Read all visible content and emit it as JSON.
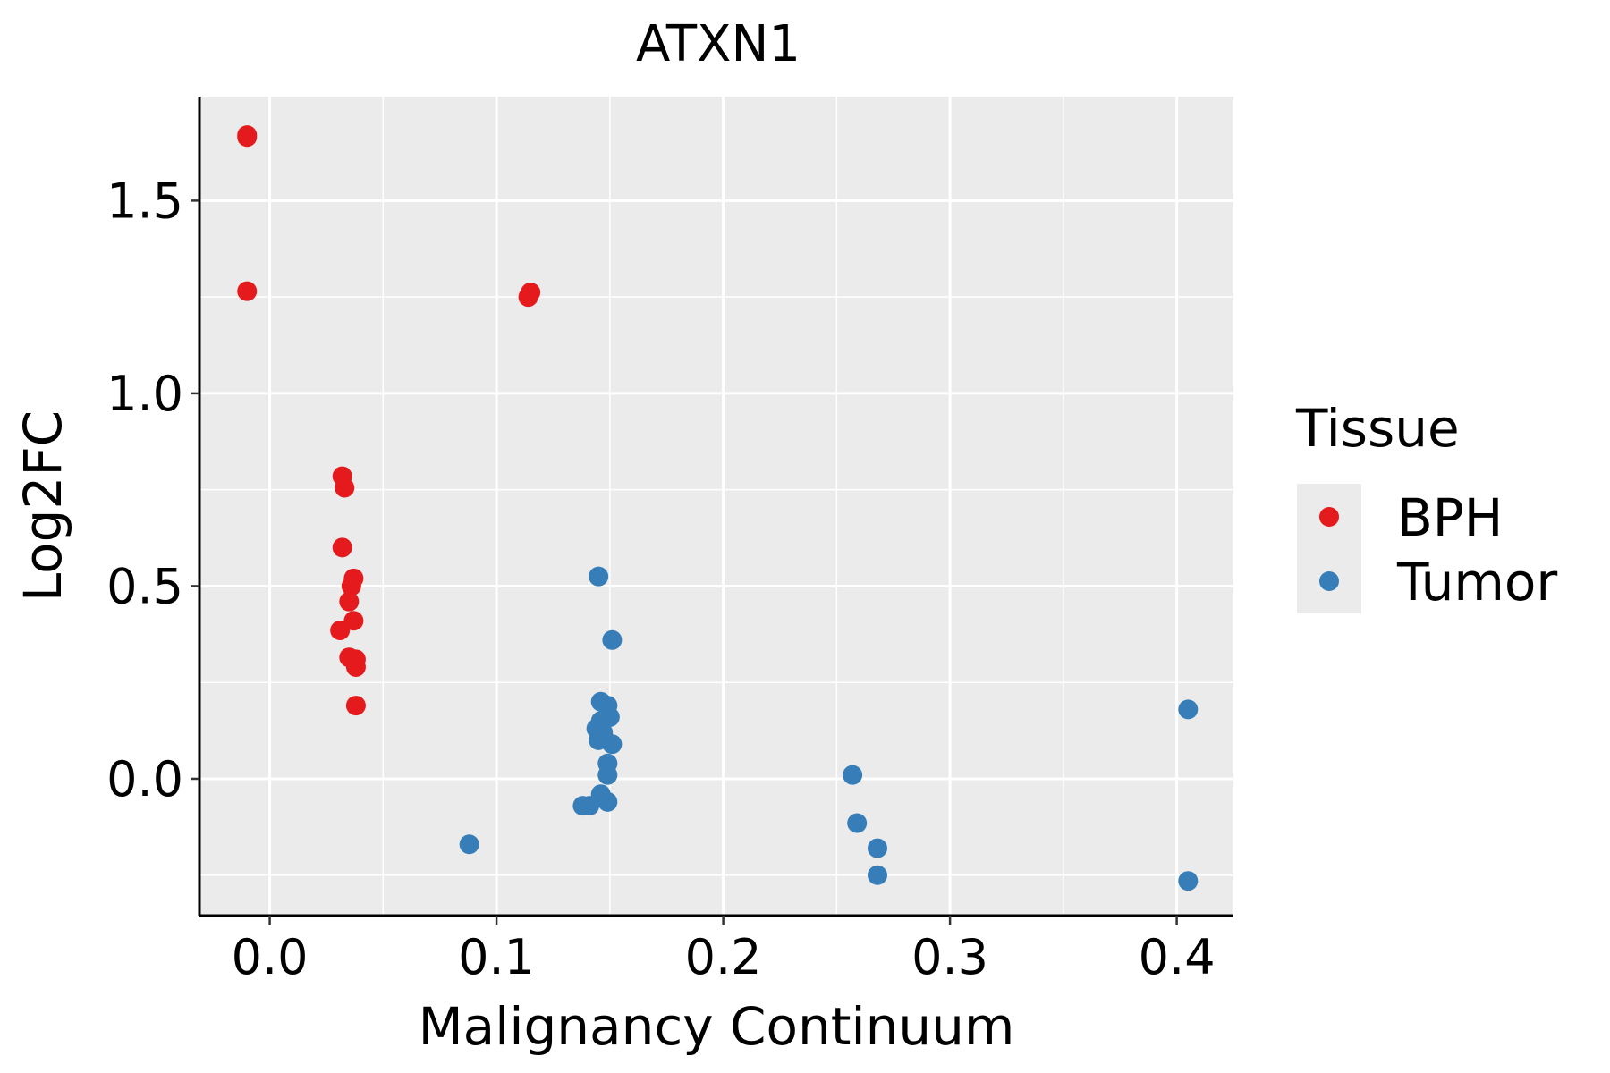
{
  "chart_data": {
    "type": "scatter",
    "title": "ATXN1",
    "xlabel": "Malignancy Continuum",
    "ylabel": "Log2FC",
    "xlim": [
      -0.031,
      0.425
    ],
    "ylim": [
      -0.355,
      1.77
    ],
    "x_ticks": [
      0.0,
      0.1,
      0.2,
      0.3,
      0.4
    ],
    "x_tick_labels": [
      "0.0",
      "0.1",
      "0.2",
      "0.3",
      "0.4"
    ],
    "y_ticks": [
      0.0,
      0.5,
      1.0,
      1.5
    ],
    "y_tick_labels": [
      "0.0",
      "0.5",
      "1.0",
      "1.5"
    ],
    "x_minor": [
      0.05,
      0.15,
      0.25,
      0.35
    ],
    "y_minor": [
      -0.25,
      0.25,
      0.75,
      1.25
    ],
    "grid": true,
    "legend": {
      "title": "Tissue",
      "position": "right"
    },
    "series": [
      {
        "name": "BPH",
        "color": "#E41A1C",
        "points": [
          [
            -0.01,
            1.67
          ],
          [
            -0.01,
            1.665
          ],
          [
            -0.01,
            1.265
          ],
          [
            0.114,
            1.25
          ],
          [
            0.115,
            1.262
          ],
          [
            0.032,
            0.785
          ],
          [
            0.033,
            0.755
          ],
          [
            0.032,
            0.6
          ],
          [
            0.037,
            0.52
          ],
          [
            0.036,
            0.5
          ],
          [
            0.035,
            0.46
          ],
          [
            0.037,
            0.41
          ],
          [
            0.031,
            0.385
          ],
          [
            0.035,
            0.315
          ],
          [
            0.038,
            0.31
          ],
          [
            0.038,
            0.29
          ],
          [
            0.038,
            0.19
          ]
        ]
      },
      {
        "name": "Tumor",
        "color": "#377EB8",
        "points": [
          [
            0.145,
            0.525
          ],
          [
            0.151,
            0.36
          ],
          [
            0.146,
            0.2
          ],
          [
            0.149,
            0.19
          ],
          [
            0.15,
            0.16
          ],
          [
            0.146,
            0.15
          ],
          [
            0.144,
            0.13
          ],
          [
            0.147,
            0.12
          ],
          [
            0.145,
            0.1
          ],
          [
            0.151,
            0.09
          ],
          [
            0.149,
            0.04
          ],
          [
            0.149,
            0.01
          ],
          [
            0.146,
            -0.04
          ],
          [
            0.149,
            -0.06
          ],
          [
            0.138,
            -0.07
          ],
          [
            0.141,
            -0.07
          ],
          [
            0.088,
            -0.17
          ],
          [
            0.257,
            0.01
          ],
          [
            0.259,
            -0.115
          ],
          [
            0.268,
            -0.18
          ],
          [
            0.268,
            -0.25
          ],
          [
            0.405,
            0.18
          ],
          [
            0.405,
            -0.265
          ]
        ]
      }
    ]
  }
}
